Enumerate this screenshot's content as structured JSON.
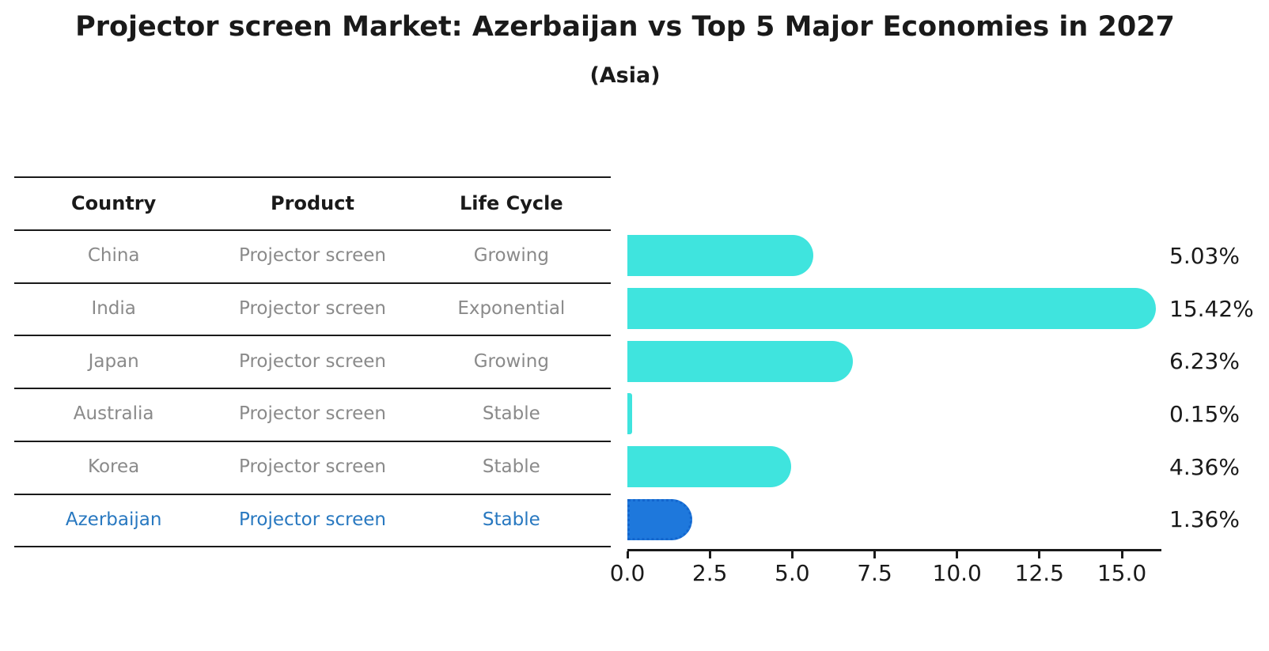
{
  "title": "Projector screen Market: Azerbaijan vs Top 5 Major Economies in 2027",
  "subtitle": "(Asia)",
  "table": {
    "headers": [
      "Country",
      "Product",
      "Life Cycle"
    ],
    "rows": [
      {
        "country": "China",
        "product": "Projector screen",
        "life_cycle": "Growing",
        "highlighted": false
      },
      {
        "country": "India",
        "product": "Projector screen",
        "life_cycle": "Exponential",
        "highlighted": false
      },
      {
        "country": "Japan",
        "product": "Projector screen",
        "life_cycle": "Growing",
        "highlighted": false
      },
      {
        "country": "Australia",
        "product": "Projector screen",
        "life_cycle": "Stable",
        "highlighted": false
      },
      {
        "country": "Korea",
        "product": "Projector screen",
        "life_cycle": "Stable",
        "highlighted": false
      },
      {
        "country": "Azerbaijan",
        "product": "Projector screen",
        "life_cycle": "Stable",
        "highlighted": true
      }
    ]
  },
  "chart_data": {
    "type": "bar",
    "orientation": "horizontal",
    "title": "Projector screen Market: Azerbaijan vs Top 5 Major Economies in 2027",
    "subtitle": "(Asia)",
    "categories": [
      "China",
      "India",
      "Japan",
      "Australia",
      "Korea",
      "Azerbaijan"
    ],
    "values": [
      5.03,
      15.42,
      6.23,
      0.15,
      4.36,
      1.36
    ],
    "value_labels": [
      "5.03%",
      "15.42%",
      "6.23%",
      "0.15%",
      "4.36%",
      "1.36%"
    ],
    "x_ticks": [
      0.0,
      2.5,
      5.0,
      7.5,
      10.0,
      12.5,
      15.0
    ],
    "x_tick_labels": [
      "0.0",
      "2.5",
      "5.0",
      "7.5",
      "10.0",
      "12.5",
      "15.0"
    ],
    "xlim": [
      0,
      16.2
    ],
    "grid": false,
    "legend": false,
    "value_label_position": "right",
    "highlight_index": 5,
    "bar_color": "#3fe4de",
    "highlight_color": "#1e78dc",
    "highlight_border_color": "#1366ce"
  },
  "colors": {
    "text": "#1a1a1a",
    "muted_row_text": "#8a8a8a",
    "highlight_row_text": "#2878c0",
    "rule": "#1a1a1a"
  }
}
